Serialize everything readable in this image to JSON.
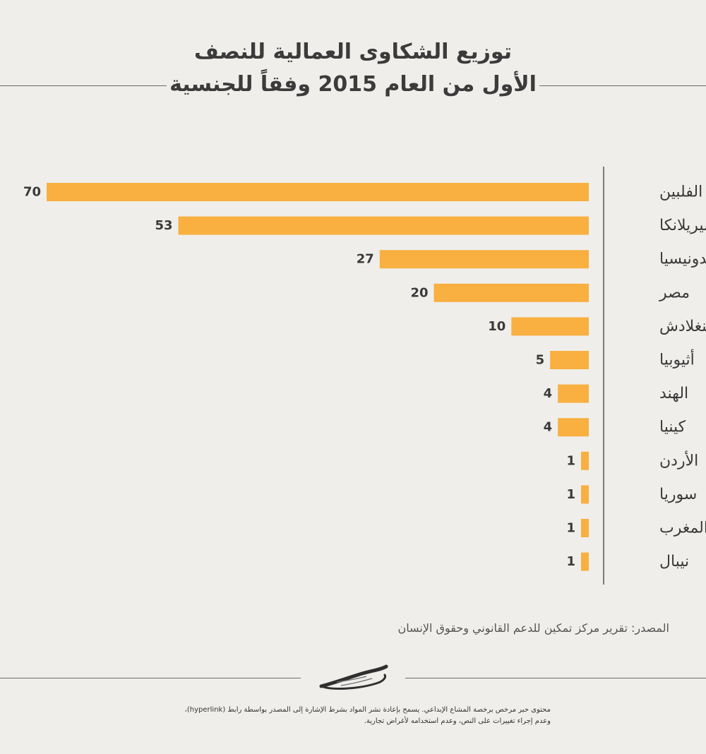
{
  "title": {
    "line1": "توزيع الشكاوى العمالية للنصف",
    "line2": "الأول من العام 2015 وفقاً للجنسية"
  },
  "chart_data": {
    "type": "bar",
    "orientation": "horizontal",
    "categories": [
      "الفلبين",
      "سيريلانكا",
      "أندونيسيا",
      "مصر",
      "بنغلادش",
      "أثيوبيا",
      "الهند",
      "كينيا",
      "الأردن",
      "سوريا",
      "المغرب",
      "نيبال"
    ],
    "values": [
      70,
      53,
      27,
      20,
      10,
      5,
      4,
      4,
      1,
      1,
      1,
      1
    ],
    "title": "توزيع الشكاوى العمالية للنصف الأول من العام 2015 وفقاً للجنسية",
    "xlabel": "",
    "ylabel": "",
    "xlim": [
      0,
      70
    ],
    "grid": false,
    "bar_color": "#f9b040",
    "axis_color": "#555555"
  },
  "source": "المصدر: تقرير مركز تمكين للدعم القانوني وحقوق الإنسان",
  "license": {
    "line1": "محتوى حبر مرخص برخصة المشاع الإبداعي. يسمح بإعادة نشر المواد بشرط الإشارة إلى المصدر بواسطة رابط (hyperlink)،",
    "line2": "وعدم إجراء تغييرات على النص، وعدم استخدامه لأغراض تجارية."
  },
  "logo": {
    "icon": "ink-brand-logo-icon"
  }
}
